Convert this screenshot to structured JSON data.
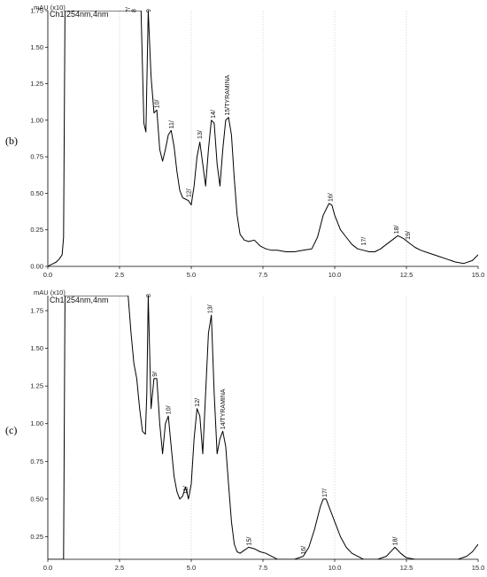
{
  "chart_data": [
    {
      "type": "line",
      "panel_label": "(b)",
      "y_unit_label": "mAU (x10)",
      "channel_label": "Ch1 254nm,4nm",
      "xlim": [
        0,
        15
      ],
      "ylim": [
        0,
        1.75
      ],
      "x_ticks": [
        "0.0",
        "2.5",
        "5.0",
        "7.5",
        "10.0",
        "12.5",
        "15.0"
      ],
      "y_ticks": [
        "0.00",
        "0.25",
        "0.50",
        "0.75",
        "1.00",
        "1.25",
        "1.50",
        "1.75"
      ],
      "grid": "vertical dotted at x ticks",
      "series": [
        {
          "color": "#000000",
          "x": [
            0,
            0.1,
            0.2,
            0.3,
            0.4,
            0.5,
            0.55,
            0.6,
            0.63,
            0.66,
            0.7,
            0.9,
            1.2,
            1.6,
            2.0,
            2.4,
            2.6,
            2.75,
            2.85,
            2.95,
            3.05,
            3.15,
            3.25,
            3.35,
            3.42,
            3.5,
            3.6,
            3.7,
            3.8,
            3.9,
            4.0,
            4.1,
            4.2,
            4.3,
            4.4,
            4.5,
            4.6,
            4.7,
            4.8,
            4.9,
            5.0,
            5.1,
            5.2,
            5.3,
            5.4,
            5.5,
            5.6,
            5.7,
            5.8,
            5.9,
            6.0,
            6.1,
            6.2,
            6.3,
            6.4,
            6.5,
            6.6,
            6.7,
            6.85,
            7.0,
            7.2,
            7.4,
            7.6,
            7.8,
            8.0,
            8.3,
            8.6,
            8.9,
            9.2,
            9.4,
            9.6,
            9.8,
            9.9,
            10.0,
            10.2,
            10.4,
            10.6,
            10.8,
            11.0,
            11.2,
            11.4,
            11.6,
            11.8,
            12.0,
            12.2,
            12.4,
            12.6,
            12.8,
            13.0,
            13.3,
            13.6,
            13.9,
            14.2,
            14.5,
            14.8,
            15.0
          ],
          "values": [
            0.0,
            0.01,
            0.02,
            0.03,
            0.05,
            0.08,
            0.2,
            1.75,
            1.75,
            1.75,
            1.75,
            1.75,
            1.75,
            1.75,
            1.75,
            1.75,
            1.75,
            1.75,
            1.75,
            1.75,
            1.75,
            1.75,
            1.75,
            0.98,
            0.92,
            1.75,
            1.3,
            1.05,
            1.07,
            0.8,
            0.72,
            0.8,
            0.9,
            0.93,
            0.82,
            0.65,
            0.52,
            0.47,
            0.46,
            0.45,
            0.42,
            0.55,
            0.75,
            0.85,
            0.7,
            0.55,
            0.8,
            1.0,
            0.98,
            0.7,
            0.55,
            0.8,
            1.0,
            1.02,
            0.9,
            0.6,
            0.35,
            0.22,
            0.18,
            0.17,
            0.18,
            0.14,
            0.12,
            0.11,
            0.11,
            0.1,
            0.1,
            0.11,
            0.12,
            0.2,
            0.35,
            0.43,
            0.42,
            0.35,
            0.25,
            0.2,
            0.15,
            0.12,
            0.11,
            0.1,
            0.1,
            0.12,
            0.15,
            0.18,
            0.21,
            0.19,
            0.16,
            0.13,
            0.11,
            0.09,
            0.07,
            0.05,
            0.03,
            0.02,
            0.04,
            0.08
          ]
        }
      ],
      "peak_labels": [
        {
          "text": "7/",
          "x": 2.8,
          "y": 1.75
        },
        {
          "text": "8",
          "x": 3.0,
          "y": 1.75
        },
        {
          "text": "9",
          "x": 3.5,
          "y": 1.75
        },
        {
          "text": "10/",
          "x": 3.8,
          "y": 1.07
        },
        {
          "text": "11/",
          "x": 4.3,
          "y": 0.93
        },
        {
          "text": "12/",
          "x": 4.9,
          "y": 0.46
        },
        {
          "text": "13/",
          "x": 5.3,
          "y": 0.86
        },
        {
          "text": "14/",
          "x": 5.75,
          "y": 1.0
        },
        {
          "text": "15/TYRAMINA",
          "x": 6.25,
          "y": 1.02
        },
        {
          "text": "16/",
          "x": 9.85,
          "y": 0.43
        },
        {
          "text": "17/",
          "x": 11.0,
          "y": 0.13
        },
        {
          "text": "18/",
          "x": 12.15,
          "y": 0.21
        },
        {
          "text": "19/",
          "x": 12.55,
          "y": 0.17
        }
      ]
    },
    {
      "type": "line",
      "panel_label": "(c)",
      "y_unit_label": "mAU (x10)",
      "channel_label": "Ch1 254nm,4nm",
      "xlim": [
        0,
        15
      ],
      "ylim": [
        0.1,
        1.85
      ],
      "x_ticks": [
        "0.0",
        "2.5",
        "5.0",
        "7.5",
        "10.0",
        "12.5",
        "15.0"
      ],
      "y_ticks": [
        "0.25",
        "0.50",
        "0.75",
        "1.00",
        "1.25",
        "1.50",
        "1.75"
      ],
      "grid": "vertical dotted at x ticks",
      "series": [
        {
          "color": "#000000",
          "x": [
            0,
            0.3,
            0.55,
            0.6,
            0.63,
            0.66,
            0.7,
            1.2,
            2.0,
            2.6,
            2.8,
            2.9,
            3.0,
            3.1,
            3.2,
            3.3,
            3.4,
            3.45,
            3.5,
            3.6,
            3.7,
            3.8,
            3.9,
            4.0,
            4.1,
            4.2,
            4.3,
            4.4,
            4.5,
            4.6,
            4.7,
            4.8,
            4.9,
            5.0,
            5.1,
            5.2,
            5.3,
            5.4,
            5.5,
            5.6,
            5.7,
            5.8,
            5.9,
            6.0,
            6.1,
            6.2,
            6.3,
            6.4,
            6.5,
            6.6,
            6.7,
            6.85,
            7.0,
            7.2,
            7.4,
            7.6,
            7.8,
            8.0,
            8.3,
            8.6,
            8.9,
            9.1,
            9.3,
            9.5,
            9.6,
            9.7,
            9.8,
            10.0,
            10.2,
            10.4,
            10.6,
            10.8,
            11.0,
            11.2,
            11.5,
            11.8,
            12.0,
            12.1,
            12.3,
            12.5,
            12.8,
            13.1,
            13.4,
            13.7,
            14.0,
            14.3,
            14.6,
            14.8,
            15.0
          ],
          "values": [
            0.1,
            0.1,
            0.1,
            1.85,
            1.85,
            1.85,
            1.85,
            1.85,
            1.85,
            1.85,
            1.85,
            1.6,
            1.4,
            1.3,
            1.1,
            0.95,
            0.93,
            1.2,
            1.85,
            1.1,
            1.3,
            1.3,
            1.0,
            0.8,
            1.0,
            1.05,
            0.85,
            0.65,
            0.55,
            0.5,
            0.52,
            0.58,
            0.5,
            0.6,
            0.9,
            1.1,
            1.05,
            0.8,
            1.2,
            1.6,
            1.72,
            1.2,
            0.8,
            0.9,
            0.95,
            0.85,
            0.6,
            0.35,
            0.2,
            0.15,
            0.14,
            0.16,
            0.18,
            0.17,
            0.15,
            0.14,
            0.12,
            0.1,
            0.1,
            0.1,
            0.12,
            0.18,
            0.3,
            0.45,
            0.5,
            0.5,
            0.45,
            0.35,
            0.25,
            0.18,
            0.14,
            0.12,
            0.1,
            0.1,
            0.1,
            0.12,
            0.16,
            0.18,
            0.14,
            0.11,
            0.1,
            0.1,
            0.1,
            0.1,
            0.1,
            0.1,
            0.12,
            0.15,
            0.2
          ]
        }
      ],
      "peak_labels": [
        {
          "text": "8",
          "x": 3.5,
          "y": 1.85
        },
        {
          "text": "9/",
          "x": 3.72,
          "y": 1.3
        },
        {
          "text": "10/",
          "x": 4.2,
          "y": 1.05
        },
        {
          "text": "11/",
          "x": 4.8,
          "y": 0.52
        },
        {
          "text": "12/",
          "x": 5.2,
          "y": 1.1
        },
        {
          "text": "13/",
          "x": 5.65,
          "y": 1.72
        },
        {
          "text": "14/TYRAMINA",
          "x": 6.1,
          "y": 0.95
        },
        {
          "text": "15/",
          "x": 7.0,
          "y": 0.18
        },
        {
          "text": "16/",
          "x": 8.9,
          "y": 0.12
        },
        {
          "text": "17/",
          "x": 9.65,
          "y": 0.5
        },
        {
          "text": "18/",
          "x": 12.1,
          "y": 0.18
        }
      ]
    }
  ]
}
